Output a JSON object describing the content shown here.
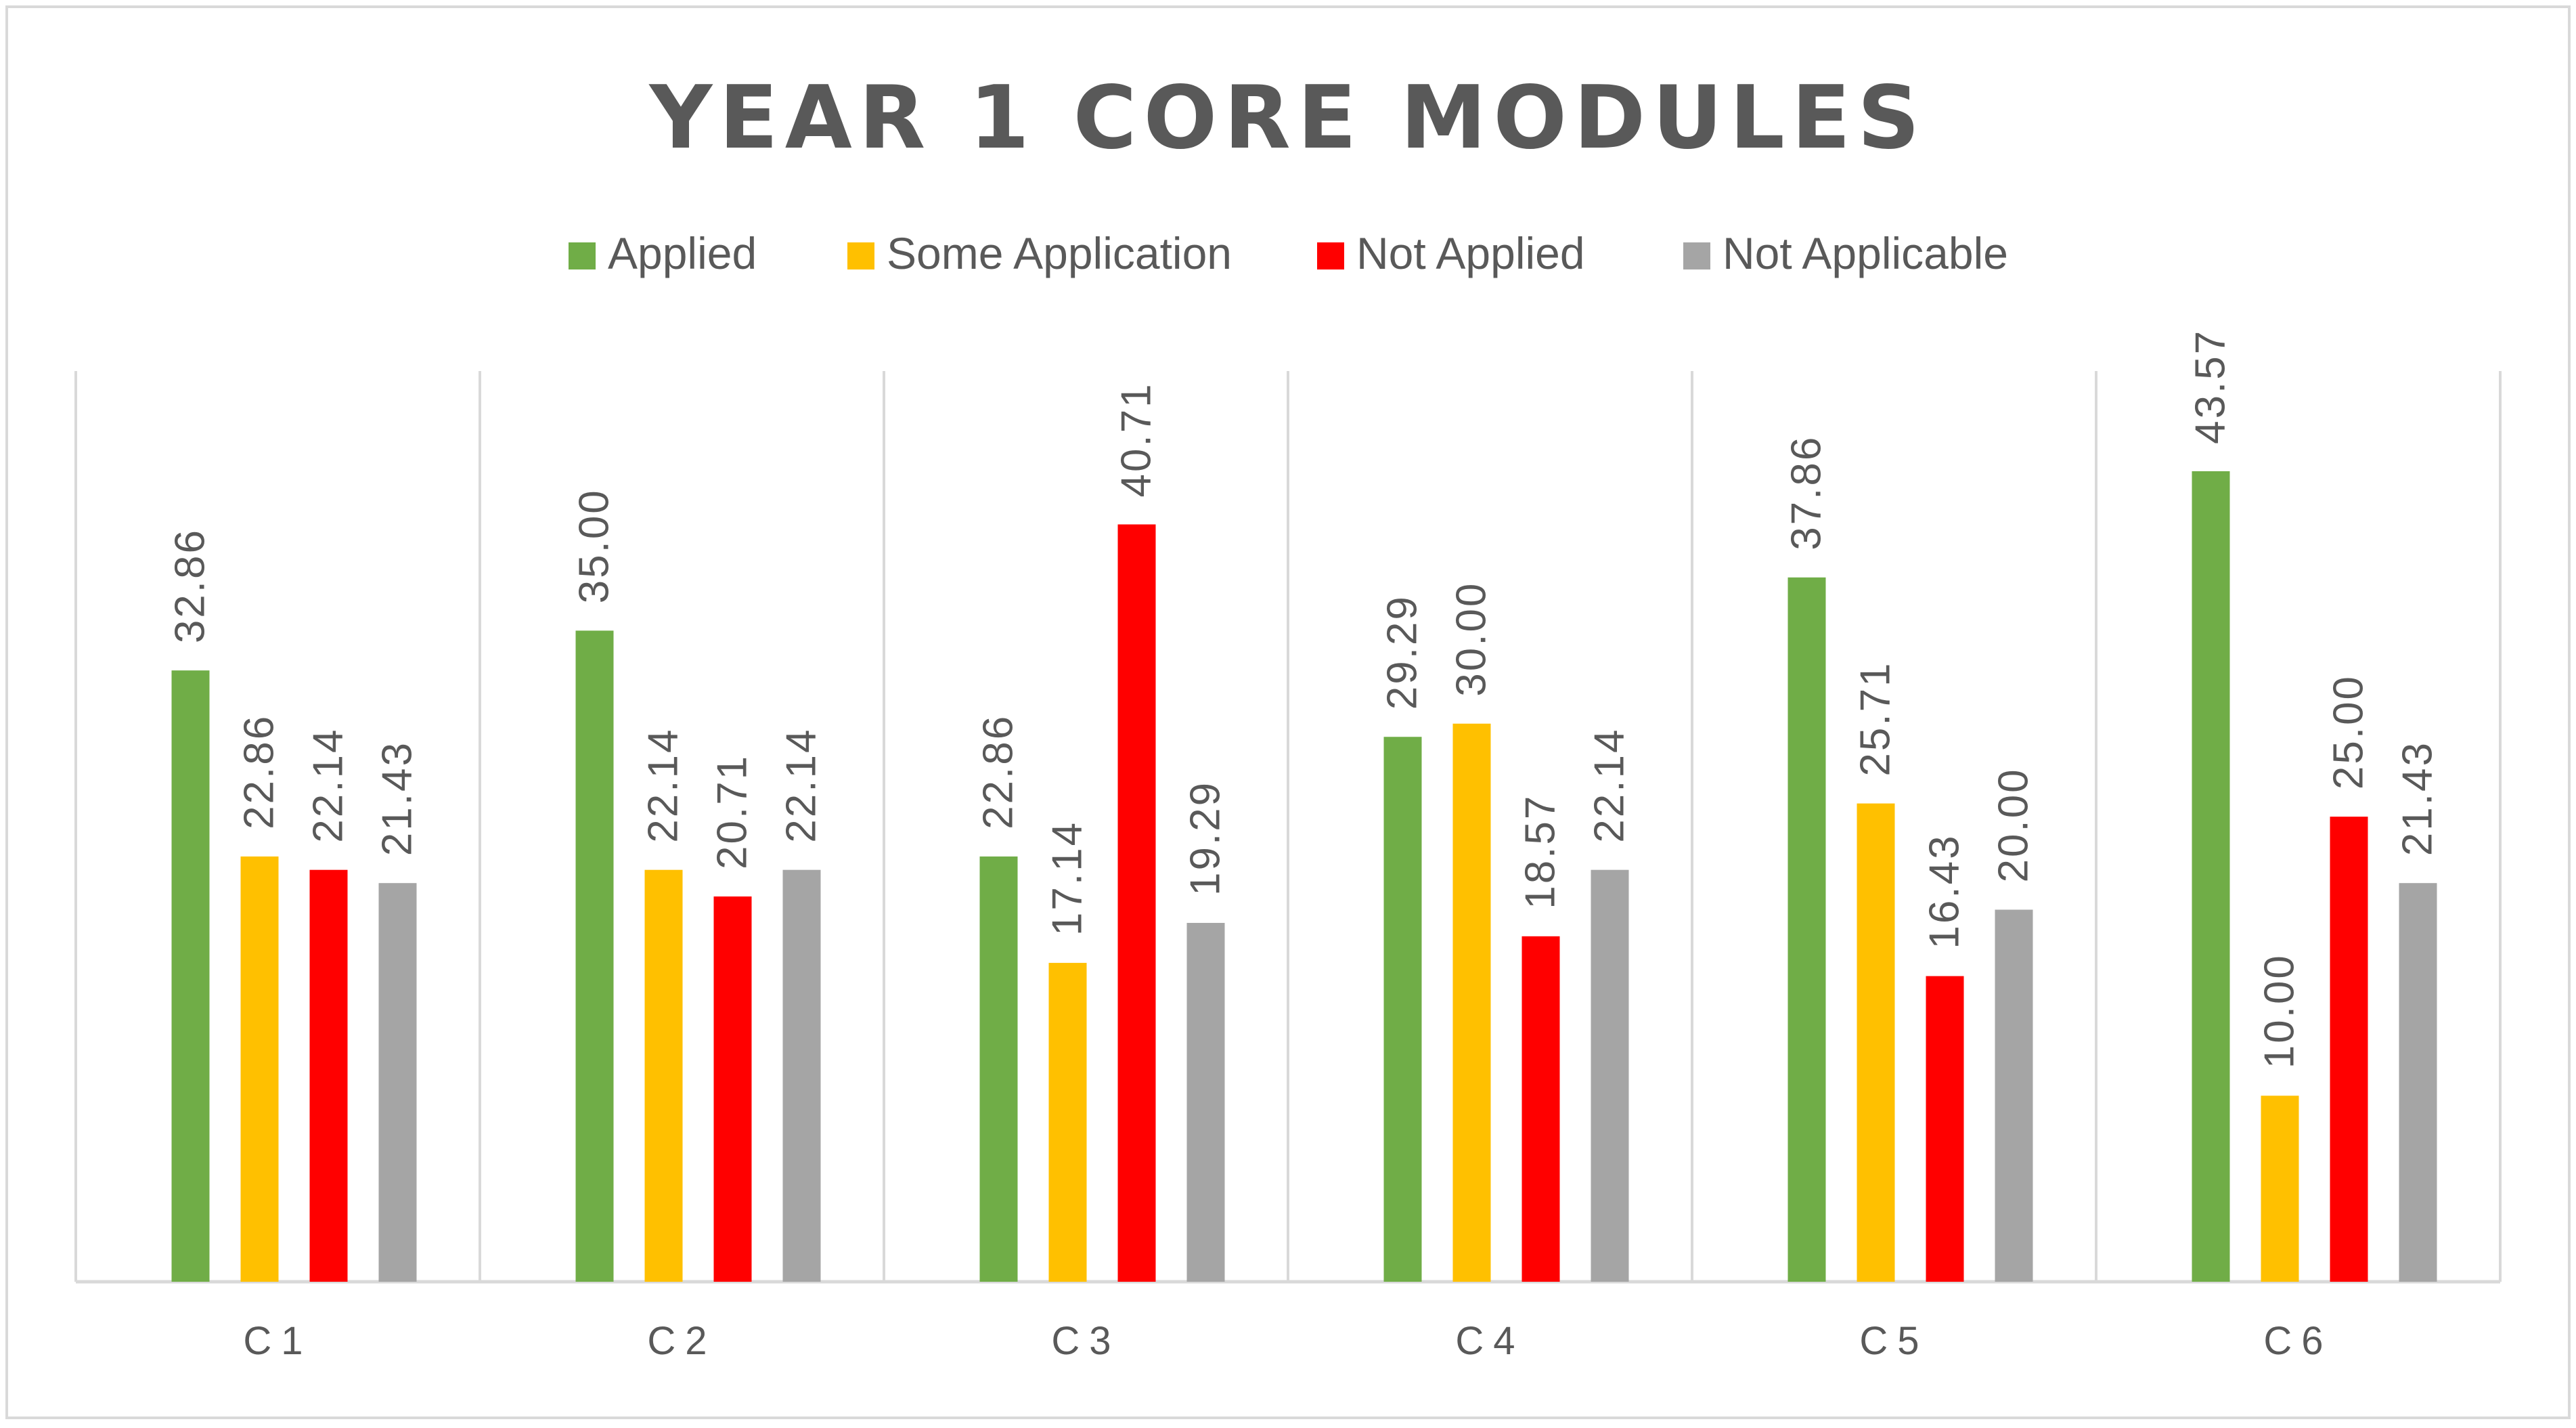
{
  "chart_data": {
    "type": "bar",
    "title": "YEAR 1 CORE MODULES",
    "categories": [
      "C1",
      "C2",
      "C3",
      "C4",
      "C5",
      "C6"
    ],
    "series": [
      {
        "name": "Applied",
        "color": "#70ad47",
        "values": [
          32.86,
          35.0,
          22.86,
          29.29,
          37.86,
          43.57
        ]
      },
      {
        "name": "Some Application",
        "color": "#ffc000",
        "values": [
          22.86,
          22.14,
          17.14,
          30.0,
          25.71,
          10.0
        ]
      },
      {
        "name": "Not Applied",
        "color": "#ff0000",
        "values": [
          22.14,
          20.71,
          40.71,
          18.57,
          16.43,
          25.0
        ]
      },
      {
        "name": "Not Applicable",
        "color": "#a5a5a5",
        "values": [
          21.43,
          22.14,
          19.29,
          22.14,
          20.0,
          21.43
        ]
      }
    ],
    "data_labels": [
      [
        "32.86",
        "35.00",
        "22.86",
        "29.29",
        "37.86",
        "43.57"
      ],
      [
        "22.86",
        "22.14",
        "17.14",
        "30.00",
        "25.71",
        "10.00"
      ],
      [
        "22.14",
        "20.71",
        "40.71",
        "18.57",
        "16.43",
        "25.00"
      ],
      [
        "21.43",
        "22.14",
        "19.29",
        "22.14",
        "20.00",
        "21.43"
      ]
    ],
    "xlabel": "",
    "ylabel": "",
    "ylim": [
      0,
      50
    ],
    "grid": "vertical-separators",
    "legend_position": "top"
  }
}
